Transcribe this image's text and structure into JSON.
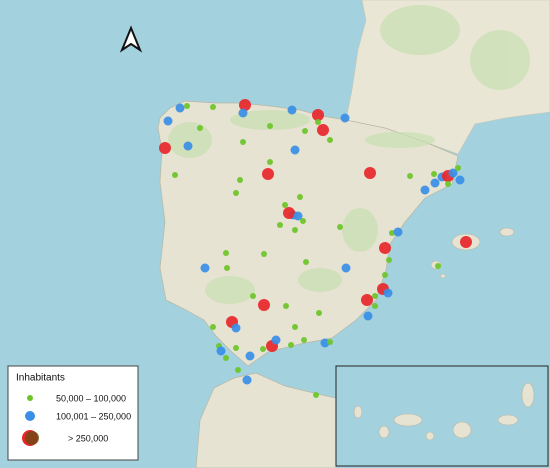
{
  "legend": {
    "title": "Inhabitants",
    "items": [
      {
        "label": "50,000 – 100,000",
        "color": "#6cc428"
      },
      {
        "label": "100,001 – 250,000",
        "color": "#3a8ee6"
      },
      {
        "label": "> 250,000",
        "color": "#e8262a"
      }
    ]
  }
}
